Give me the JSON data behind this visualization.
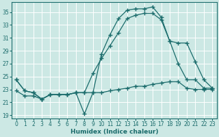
{
  "xlabel": "Humidex (Indice chaleur)",
  "bg_color": "#cce8e4",
  "line_color": "#1a6b6b",
  "grid_color": "#ffffff",
  "xlim": [
    -0.5,
    23.5
  ],
  "ylim": [
    18.5,
    36.5
  ],
  "yticks": [
    19,
    21,
    23,
    25,
    27,
    29,
    31,
    33,
    35
  ],
  "xticks": [
    0,
    1,
    2,
    3,
    4,
    5,
    6,
    7,
    8,
    9,
    10,
    11,
    12,
    13,
    14,
    15,
    16,
    17,
    18,
    19,
    20,
    21,
    22,
    23
  ],
  "line1_x": [
    0,
    1,
    2,
    3,
    4,
    5,
    6,
    7,
    8,
    9,
    10,
    11,
    12,
    13,
    14,
    15,
    16,
    17,
    18,
    19,
    20,
    21,
    22,
    23
  ],
  "line1_y": [
    24.5,
    22.8,
    22.5,
    21.5,
    22.2,
    22.2,
    22.2,
    22.5,
    19.2,
    22.5,
    28.5,
    31.5,
    34.0,
    35.3,
    35.5,
    35.5,
    35.8,
    34.2,
    30.5,
    27.0,
    24.5,
    24.5,
    23.2,
    23.2
  ],
  "line2_x": [
    0,
    1,
    2,
    3,
    4,
    5,
    6,
    7,
    8,
    9,
    10,
    11,
    12,
    13,
    14,
    15,
    16,
    17,
    18,
    19,
    20,
    21,
    22,
    23
  ],
  "line2_y": [
    24.5,
    22.8,
    22.5,
    21.5,
    22.2,
    22.2,
    22.2,
    22.5,
    22.5,
    25.5,
    27.8,
    29.8,
    31.8,
    34.0,
    34.5,
    34.8,
    34.8,
    33.8,
    30.5,
    30.2,
    30.2,
    27.3,
    24.5,
    23.2
  ],
  "line3_x": [
    0,
    1,
    2,
    3,
    4,
    5,
    6,
    7,
    8,
    9,
    10,
    11,
    12,
    13,
    14,
    15,
    16,
    17,
    18,
    19,
    20,
    21,
    22,
    23
  ],
  "line3_y": [
    22.8,
    22.0,
    22.0,
    21.5,
    22.2,
    22.2,
    22.2,
    22.5,
    22.5,
    22.5,
    22.5,
    22.8,
    23.0,
    23.2,
    23.5,
    23.5,
    23.8,
    24.0,
    24.2,
    24.2,
    23.2,
    23.0,
    23.0,
    23.0
  ]
}
